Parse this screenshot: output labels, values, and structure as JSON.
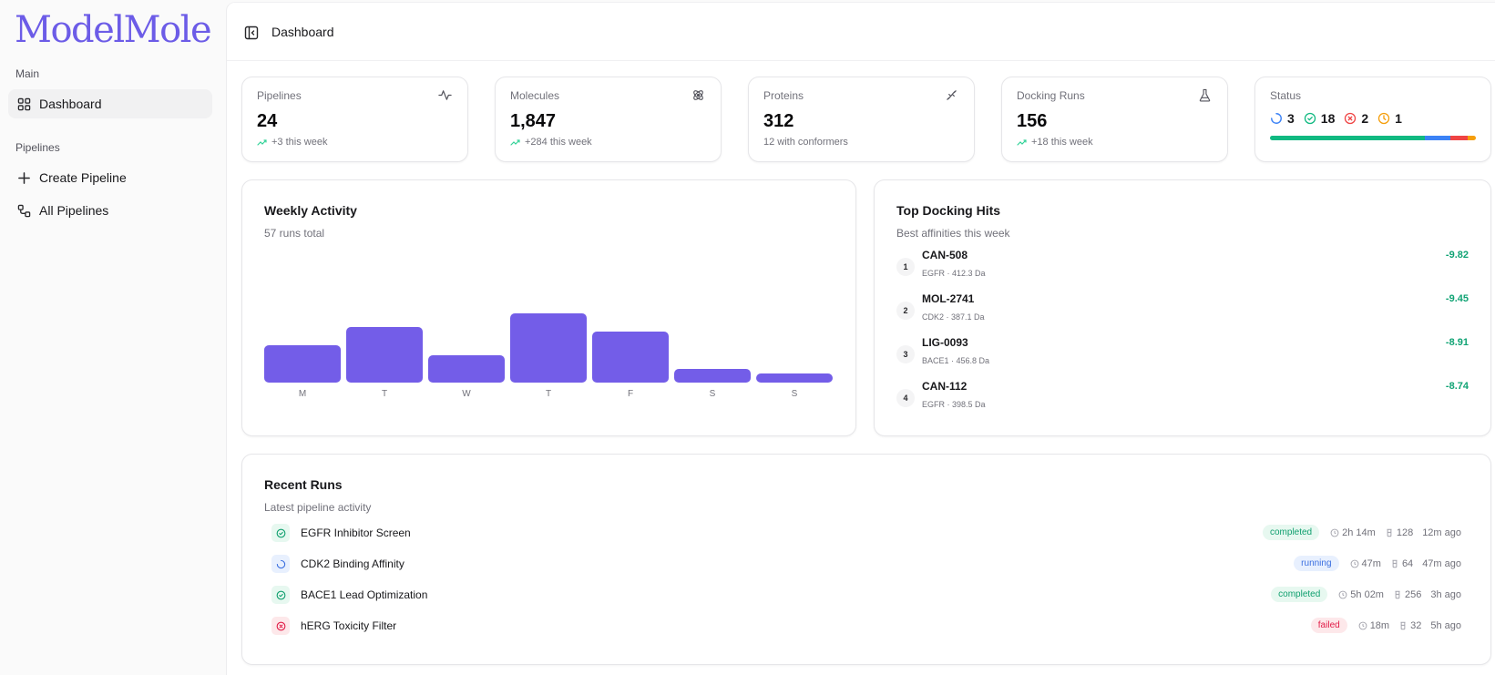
{
  "app": {
    "name": "ModelMole"
  },
  "sidebar": {
    "sections": [
      {
        "label": "Main",
        "items": [
          {
            "label": "Dashboard",
            "icon": "grid-icon",
            "active": true
          }
        ]
      },
      {
        "label": "Pipelines",
        "items": [
          {
            "label": "Create Pipeline",
            "icon": "plus-icon",
            "active": false
          },
          {
            "label": "All Pipelines",
            "icon": "workflow-icon",
            "active": false
          }
        ]
      }
    ]
  },
  "header": {
    "title": "Dashboard",
    "toggle_icon": "sidebar-toggle-icon"
  },
  "stats": [
    {
      "label": "Pipelines",
      "value": "24",
      "sub": "+3 this week",
      "icon": "activity-icon",
      "trend": true
    },
    {
      "label": "Molecules",
      "value": "1,847",
      "sub": "+284 this week",
      "icon": "atom-icon",
      "trend": true
    },
    {
      "label": "Proteins",
      "value": "312",
      "sub": "12 with conformers",
      "icon": "dna-icon",
      "trend": false
    },
    {
      "label": "Docking Runs",
      "value": "156",
      "sub": "+18 this week",
      "icon": "flask-icon",
      "trend": true
    }
  ],
  "status": {
    "label": "Status",
    "items": [
      {
        "type": "running",
        "count": "3",
        "color": "#3b82f6"
      },
      {
        "type": "completed",
        "count": "18",
        "color": "#10b981"
      },
      {
        "type": "failed",
        "count": "2",
        "color": "#ef4444"
      },
      {
        "type": "queued",
        "count": "1",
        "color": "#f59e0b"
      }
    ],
    "bar": [
      {
        "type": "completed",
        "value": 18,
        "color": "#10b981"
      },
      {
        "type": "running",
        "value": 3,
        "color": "#3b82f6"
      },
      {
        "type": "failed",
        "value": 2,
        "color": "#ef4444"
      },
      {
        "type": "queued",
        "value": 1,
        "color": "#f59e0b"
      }
    ]
  },
  "weekly_activity": {
    "title": "Weekly Activity",
    "subtitle": "57 runs total",
    "bar_color": "#735de8"
  },
  "chart_data": {
    "type": "bar",
    "title": "Weekly Activity",
    "subtitle": "57 runs total",
    "categories": [
      "M",
      "T",
      "W",
      "T",
      "F",
      "S",
      "S"
    ],
    "values": [
      8,
      12,
      6,
      15,
      11,
      3,
      2
    ],
    "xlabel": "",
    "ylabel": "",
    "grid": false
  },
  "top_hits": {
    "title": "Top Docking Hits",
    "subtitle": "Best affinities this week",
    "items": [
      {
        "rank": "1",
        "name": "CAN-508",
        "meta": "EGFR · 412.3 Da",
        "score": "-9.82"
      },
      {
        "rank": "2",
        "name": "MOL-2741",
        "meta": "CDK2 · 387.1 Da",
        "score": "-9.45"
      },
      {
        "rank": "3",
        "name": "LIG-0093",
        "meta": "BACE1 · 456.8 Da",
        "score": "-8.91"
      },
      {
        "rank": "4",
        "name": "CAN-112",
        "meta": "EGFR · 398.5 Da",
        "score": "-8.74"
      }
    ]
  },
  "recent_runs": {
    "title": "Recent Runs",
    "subtitle": "Latest pipeline activity",
    "items": [
      {
        "name": "EGFR Inhibitor Screen",
        "status": "completed",
        "duration": "2h 14m",
        "count": "128",
        "ago": "12m ago"
      },
      {
        "name": "CDK2 Binding Affinity",
        "status": "running",
        "duration": "47m",
        "count": "64",
        "ago": "47m ago"
      },
      {
        "name": "BACE1 Lead Optimization",
        "status": "completed",
        "duration": "5h 02m",
        "count": "256",
        "ago": "3h ago"
      },
      {
        "name": "hERG Toxicity Filter",
        "status": "failed",
        "duration": "18m",
        "count": "32",
        "ago": "5h ago"
      }
    ]
  },
  "colors": {
    "brand": "#6c5ce7",
    "completed_bg": "#e7f8f0",
    "completed_fg": "#0f9f6e",
    "running_bg": "#e8f0fe",
    "running_fg": "#3b6fe0",
    "failed_bg": "#fde8ea",
    "failed_fg": "#e11d48"
  }
}
